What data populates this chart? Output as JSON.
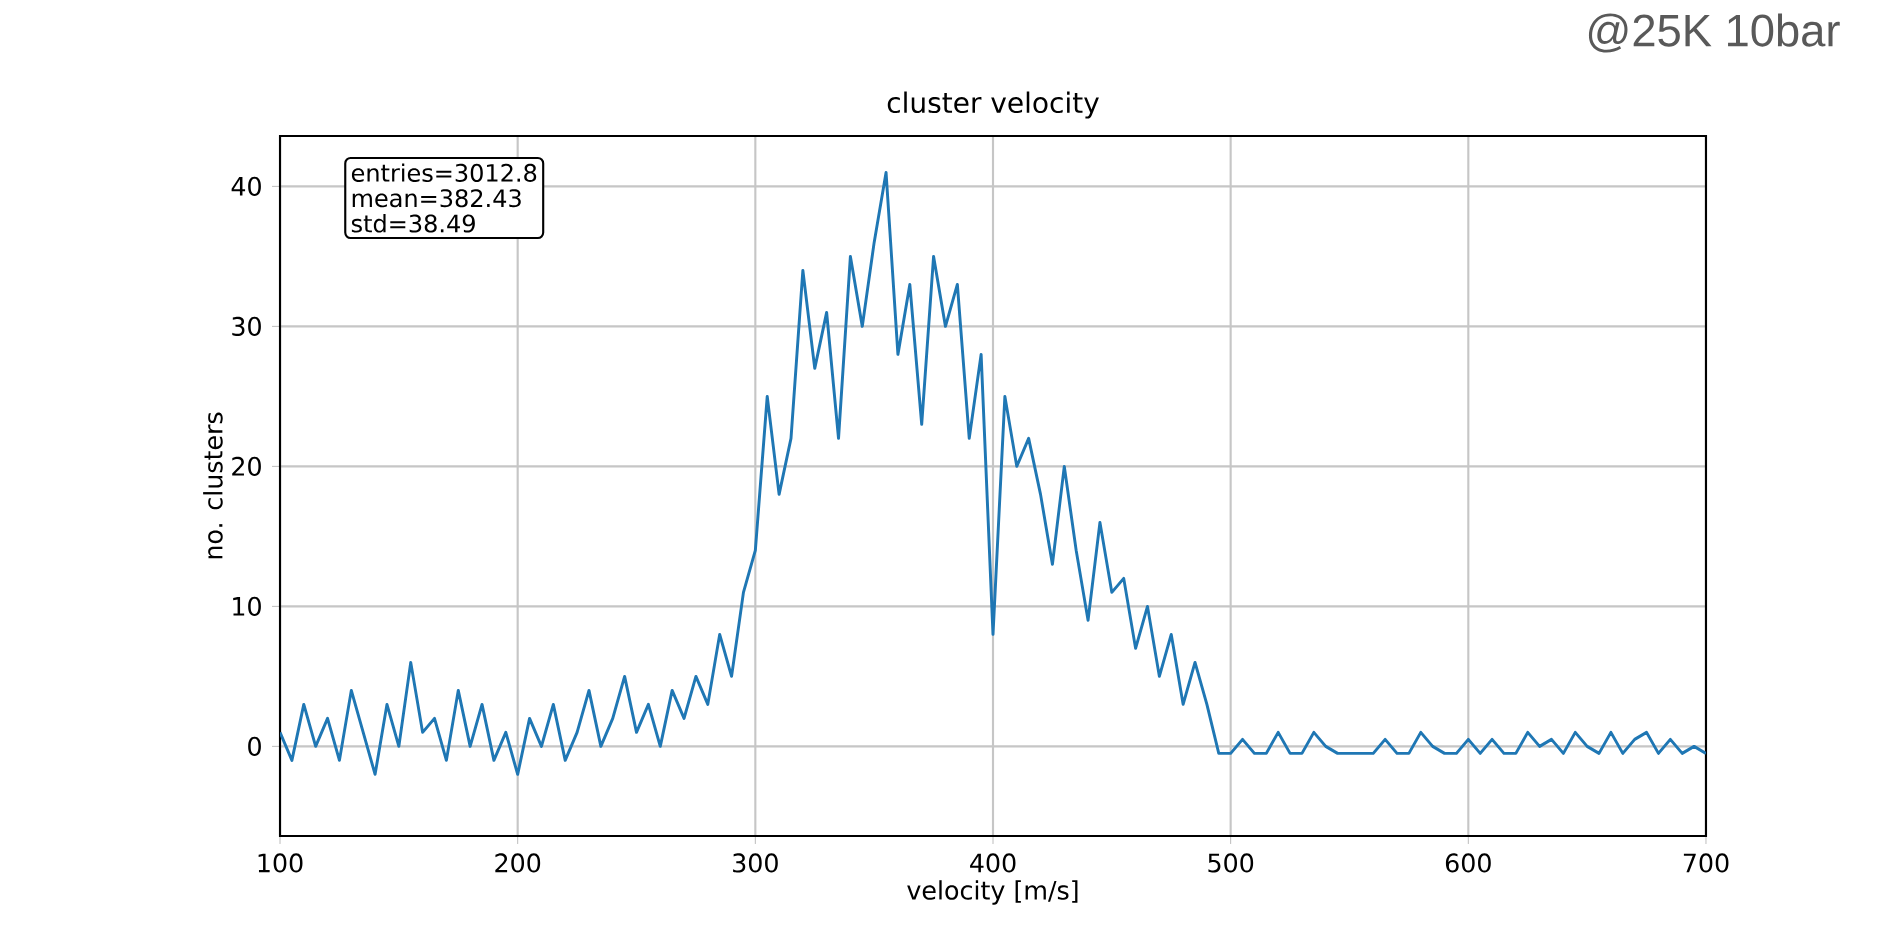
{
  "chart_data": {
    "type": "line",
    "title": "cluster velocity",
    "xlabel": "velocity [m/s]",
    "ylabel": "no. clusters",
    "annotations": [
      "entries=3012.8",
      "mean=382.43",
      "std=38.49",
      "@25K 10bar"
    ],
    "x": [
      100,
      105,
      110,
      115,
      120,
      125,
      130,
      135,
      140,
      145,
      150,
      155,
      160,
      165,
      170,
      175,
      180,
      185,
      190,
      195,
      200,
      205,
      210,
      215,
      220,
      225,
      230,
      235,
      240,
      245,
      250,
      255,
      260,
      265,
      270,
      275,
      280,
      285,
      290,
      295,
      300,
      305,
      310,
      315,
      320,
      325,
      330,
      335,
      340,
      345,
      350,
      355,
      360,
      365,
      370,
      375,
      380,
      385,
      390,
      395,
      400,
      405,
      410,
      415,
      420,
      425,
      430,
      435,
      440,
      445,
      450,
      455,
      460,
      465,
      470,
      475,
      480,
      485,
      490,
      495,
      500,
      505,
      510,
      515,
      520,
      525,
      530,
      535,
      540,
      545,
      550,
      555,
      560,
      565,
      570,
      575,
      580,
      585,
      590,
      595,
      600,
      605,
      610,
      615,
      620,
      625,
      630,
      635,
      640,
      645,
      650,
      655,
      660,
      665,
      670,
      675,
      680,
      685,
      690,
      695,
      700
    ],
    "series": [
      {
        "color": "#1f77b4",
        "values": [
          1,
          -1,
          3,
          0,
          2,
          -1,
          4,
          1,
          -2,
          3,
          0,
          6,
          1,
          2,
          -1,
          4,
          0,
          3,
          -1,
          1,
          -2,
          2,
          0,
          3,
          -1,
          1,
          4,
          0,
          2,
          5,
          1,
          3,
          0,
          4,
          2,
          5,
          3,
          8,
          5,
          11,
          14,
          25,
          18,
          22,
          34,
          27,
          31,
          22,
          35,
          30,
          36,
          41,
          28,
          33,
          23,
          35,
          30,
          33,
          22,
          28,
          8,
          25,
          20,
          22,
          18,
          13,
          20,
          14,
          9,
          16,
          11,
          12,
          7,
          10,
          5,
          8,
          3,
          6,
          3,
          -0.5,
          -0.5,
          0.5,
          -0.5,
          -0.5,
          1,
          -0.5,
          -0.5,
          1,
          0,
          -0.5,
          -0.5,
          -0.5,
          -0.5,
          0.5,
          -0.5,
          -0.5,
          1,
          0,
          -0.5,
          -0.5,
          0.5,
          -0.5,
          0.5,
          -0.5,
          -0.5,
          1,
          0,
          0.5,
          -0.5,
          1,
          0,
          -0.5,
          1,
          -0.5,
          0.5,
          1,
          -0.5,
          0.5,
          -0.5,
          0,
          -0.5
        ]
      }
    ],
    "xlim": [
      100,
      700
    ],
    "ylim": [
      -6.4,
      43.6
    ],
    "xticks": [
      100,
      200,
      300,
      400,
      500,
      600,
      700
    ],
    "yticks": [
      0,
      10,
      20,
      30,
      40
    ],
    "grid": true,
    "marker": "none",
    "line_style": "solid"
  }
}
